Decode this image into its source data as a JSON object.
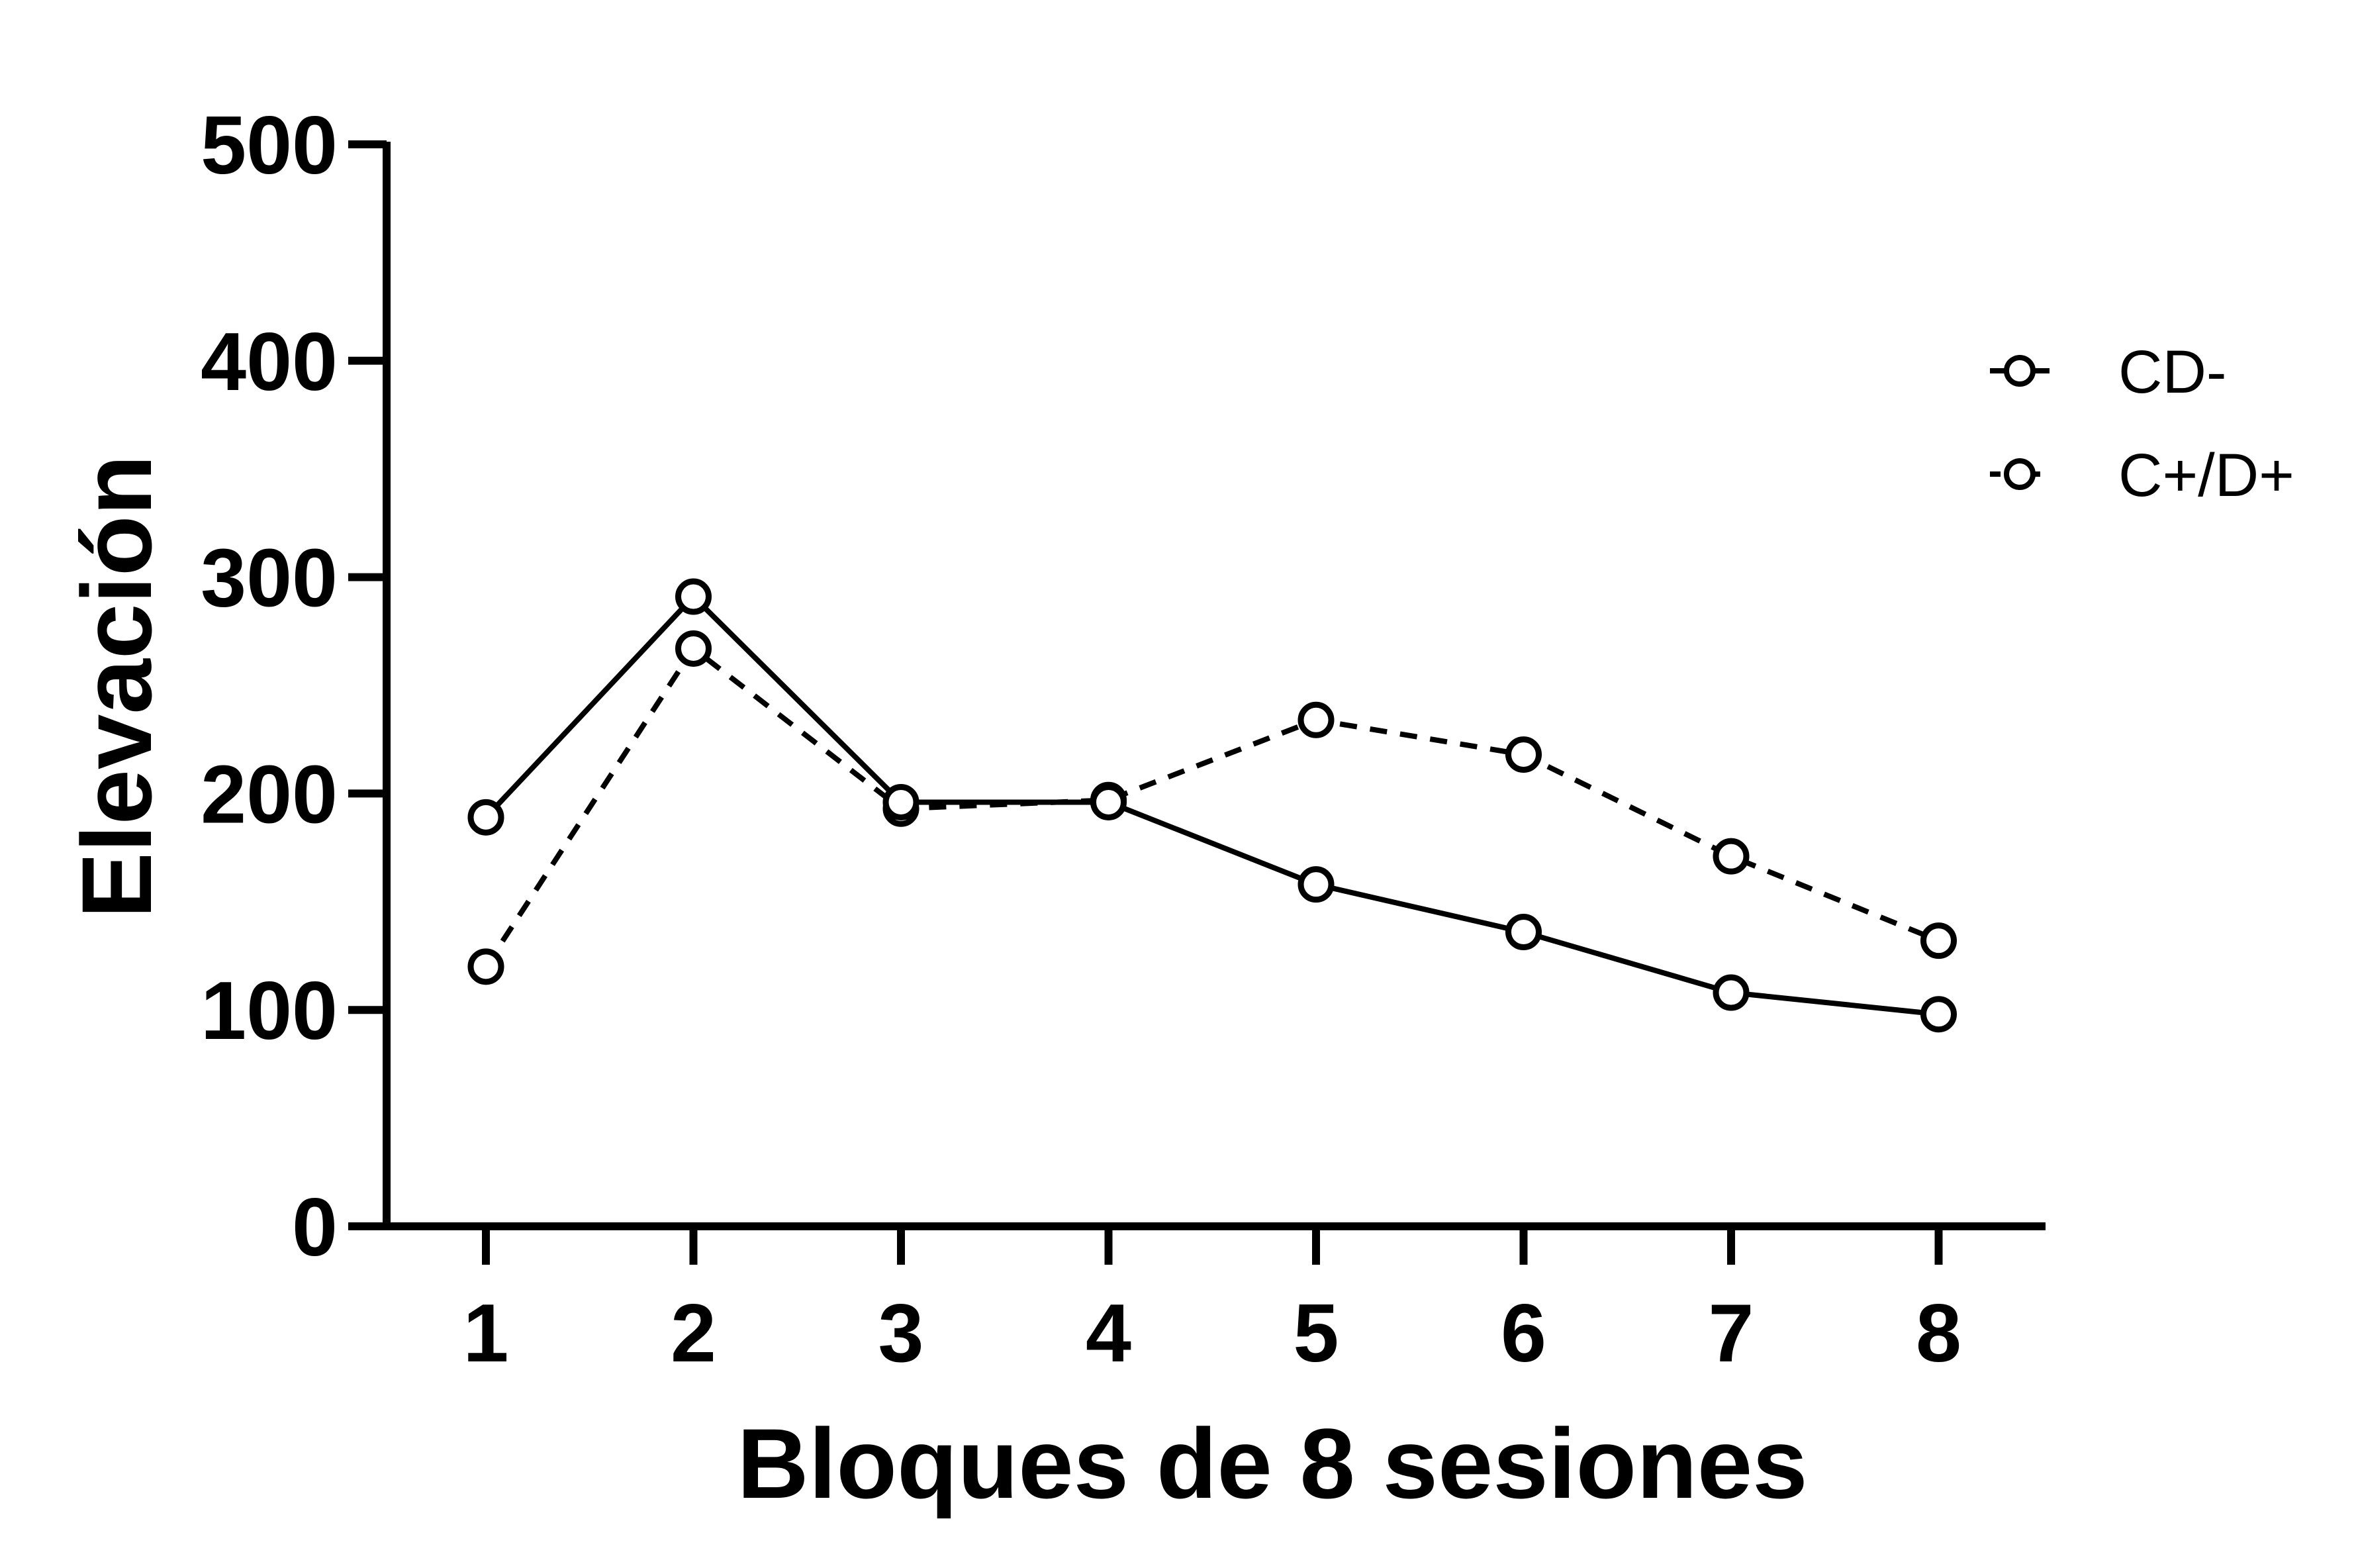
{
  "chart_data": {
    "type": "line",
    "title": "",
    "xlabel": "Bloques de 8 sesiones",
    "ylabel": "Elevación",
    "x": [
      1,
      2,
      3,
      4,
      5,
      6,
      7,
      8
    ],
    "x_tick_labels": [
      "1",
      "2",
      "3",
      "4",
      "5",
      "6",
      "7",
      "8"
    ],
    "ylim": [
      0,
      500
    ],
    "y_ticks": [
      0,
      100,
      200,
      300,
      400,
      500
    ],
    "y_tick_labels": [
      "0",
      "100",
      "200",
      "300",
      "400",
      "500"
    ],
    "grid": false,
    "legend_position": "right",
    "series": [
      {
        "name": "CD-",
        "line_style": "solid",
        "marker": "open-circle",
        "color": "#000000",
        "values": [
          189,
          291,
          196,
          196,
          158,
          136,
          108,
          98
        ]
      },
      {
        "name": "C+/D+",
        "line_style": "dashed",
        "marker": "open-circle",
        "color": "#000000",
        "values": [
          120,
          267,
          193,
          197,
          234,
          218,
          171,
          132
        ]
      }
    ]
  }
}
